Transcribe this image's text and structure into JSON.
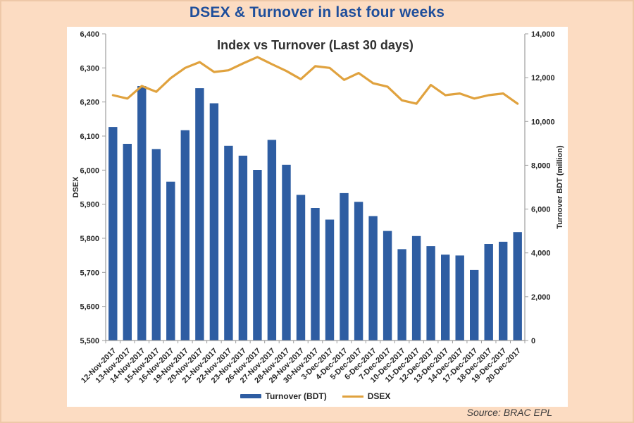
{
  "page": {
    "title": "DSEX & Turnover in last four weeks",
    "source": "Source: BRAC EPL",
    "background_color": "#fcdcc2",
    "title_color": "#1e4e9b"
  },
  "chart_data": {
    "type": "bar+line combo",
    "title": "Index vs Turnover (Last 30 days)",
    "grid": false,
    "legend_position": "bottom",
    "categories": [
      "12-Nov-2017",
      "13-Nov-2017",
      "14-Nov-2017",
      "15-Nov-2017",
      "16-Nov-2017",
      "19-Nov-2017",
      "20-Nov-2017",
      "21-Nov-2017",
      "22-Nov-2017",
      "23-Nov-2017",
      "26-Nov-2017",
      "27-Nov-2017",
      "28-Nov-2017",
      "29-Nov-2017",
      "30-Nov-2017",
      "3-Dec-2017",
      "4-Dec-2017",
      "5-Dec-2017",
      "6-Dec-2017",
      "7-Dec-2017",
      "10-Dec-2017",
      "11-Dec-2017",
      "12-Dec-2017",
      "13-Dec-2017",
      "14-Dec-2017",
      "17-Dec-2017",
      "18-Dec-2017",
      "19-Dec-2017",
      "20-Dec-2017"
    ],
    "series": [
      {
        "name": "Turnover (BDT)",
        "type": "bar",
        "axis": "right",
        "color": "#2e5da2",
        "values": [
          9750,
          8980,
          11620,
          8740,
          7250,
          9600,
          11520,
          10830,
          8890,
          8440,
          7790,
          9160,
          8020,
          6650,
          6050,
          5520,
          6730,
          6330,
          5680,
          5000,
          4170,
          4770,
          4310,
          3920,
          3880,
          3220,
          4410,
          4510,
          4950
        ]
      },
      {
        "name": "DSEX",
        "type": "line",
        "axis": "left",
        "color": "#e0a23e",
        "values": [
          6220,
          6210,
          6247,
          6230,
          6270,
          6300,
          6317,
          6288,
          6293,
          6313,
          6332,
          6311,
          6291,
          6267,
          6305,
          6300,
          6265,
          6285,
          6255,
          6245,
          6205,
          6195,
          6250,
          6220,
          6225,
          6210,
          6220,
          6225,
          6195
        ]
      }
    ],
    "left_axis": {
      "label": "DSEX",
      "min": 5500,
      "max": 6400,
      "step": 100
    },
    "right_axis": {
      "label": "Turnover BDT (million)",
      "min": 0,
      "max": 14000,
      "step": 2000
    }
  }
}
